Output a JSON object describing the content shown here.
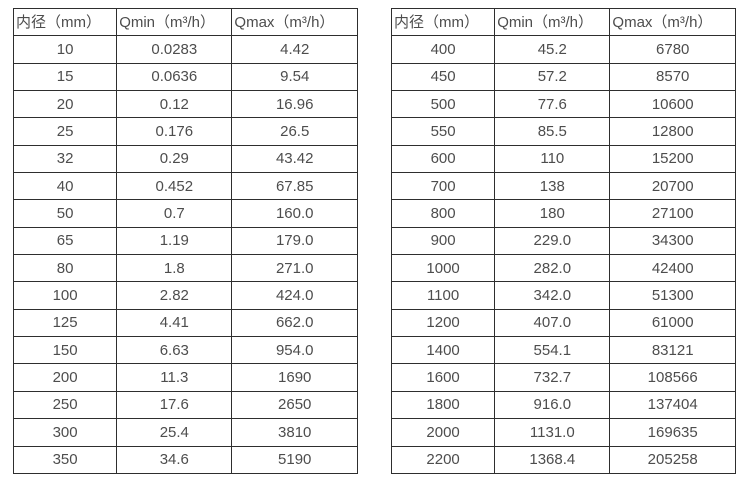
{
  "page": {
    "background_color": "#ffffff",
    "text_color": "#4d4d4d",
    "border_color": "#2e2e2e"
  },
  "tables": [
    {
      "headers": [
        "内径（mm）",
        "Qmin（m³/h）",
        "Qmax（m³/h）"
      ],
      "rows": [
        [
          "10",
          "0.0283",
          "4.42"
        ],
        [
          "15",
          "0.0636",
          "9.54"
        ],
        [
          "20",
          "0.12",
          "16.96"
        ],
        [
          "25",
          "0.176",
          "26.5"
        ],
        [
          "32",
          "0.29",
          "43.42"
        ],
        [
          "40",
          "0.452",
          "67.85"
        ],
        [
          "50",
          "0.7",
          "160.0"
        ],
        [
          "65",
          "1.19",
          "179.0"
        ],
        [
          "80",
          "1.8",
          "271.0"
        ],
        [
          "100",
          "2.82",
          "424.0"
        ],
        [
          "125",
          "4.41",
          "662.0"
        ],
        [
          "150",
          "6.63",
          "954.0"
        ],
        [
          "200",
          "11.3",
          "1690"
        ],
        [
          "250",
          "17.6",
          "2650"
        ],
        [
          "300",
          "25.4",
          "3810"
        ],
        [
          "350",
          "34.6",
          "5190"
        ]
      ]
    },
    {
      "headers": [
        "内径（mm）",
        "Qmin（m³/h）",
        "Qmax（m³/h）"
      ],
      "rows": [
        [
          "400",
          "45.2",
          "6780"
        ],
        [
          "450",
          "57.2",
          "8570"
        ],
        [
          "500",
          "77.6",
          "10600"
        ],
        [
          "550",
          "85.5",
          "12800"
        ],
        [
          "600",
          "110",
          "15200"
        ],
        [
          "700",
          "138",
          "20700"
        ],
        [
          "800",
          "180",
          "27100"
        ],
        [
          "900",
          "229.0",
          "34300"
        ],
        [
          "1000",
          "282.0",
          "42400"
        ],
        [
          "1100",
          "342.0",
          "51300"
        ],
        [
          "1200",
          "407.0",
          "61000"
        ],
        [
          "1400",
          "554.1",
          "83121"
        ],
        [
          "1600",
          "732.7",
          "108566"
        ],
        [
          "1800",
          "916.0",
          "137404"
        ],
        [
          "2000",
          "1131.0",
          "169635"
        ],
        [
          "2200",
          "1368.4",
          "205258"
        ]
      ]
    }
  ]
}
